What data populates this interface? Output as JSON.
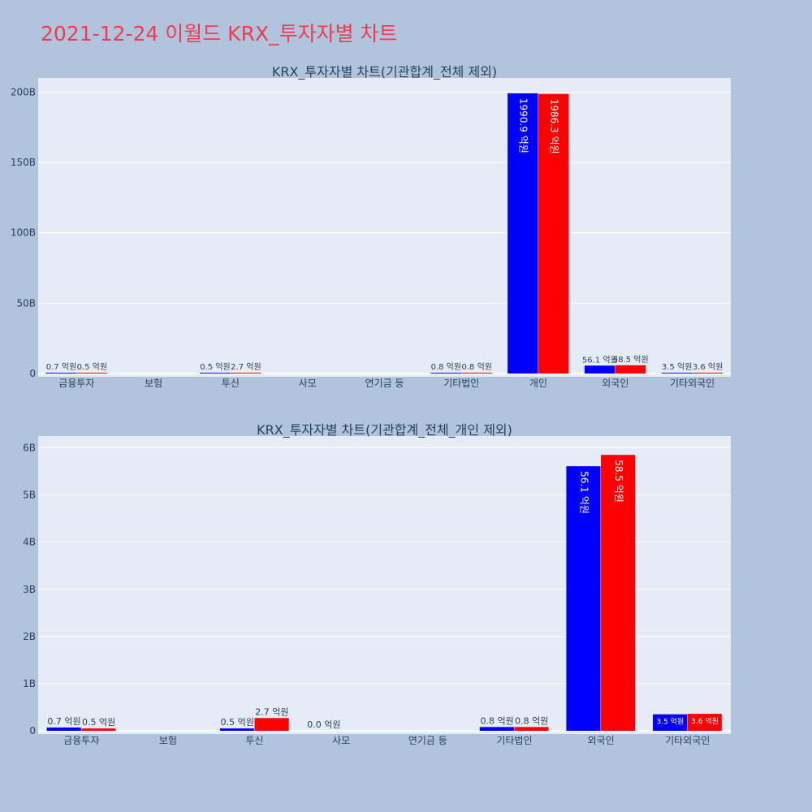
{
  "page_title": "2021-12-24 이월드 KRX_투자자별 차트",
  "colors": {
    "buy": "#0000ff",
    "sell": "#ff0000",
    "title": "#ef3b4f",
    "plot_bg": "#e5ecf6",
    "page_bg": "#b0c4de"
  },
  "chart_data": [
    {
      "type": "bar",
      "title": "KRX_투자자별 차트(기관합계_전체 제외)",
      "categories": [
        "금융투자",
        "보험",
        "투신",
        "사모",
        "연기금 등",
        "기타법인",
        "개인",
        "외국인",
        "기타외국인"
      ],
      "yticks": [
        "0",
        "50B",
        "100B",
        "150B",
        "200B"
      ],
      "ylim": [
        0,
        210
      ],
      "y_unit": "B",
      "series": [
        {
          "values": [
            0.07,
            0,
            0.05,
            0,
            0,
            0.08,
            199.09,
            5.61,
            0.35
          ],
          "labels": [
            "0.7 억원",
            "",
            "0.5 억원",
            "",
            "",
            "0.8 억원",
            "1990.9 억원",
            "56.1 억원",
            "3.5 억원"
          ]
        },
        {
          "values": [
            0.05,
            0,
            0.27,
            0,
            0,
            0.08,
            198.63,
            5.85,
            0.36
          ],
          "labels": [
            "0.5 억원",
            "",
            "2.7 억원",
            "",
            "",
            "0.8 억원",
            "1986.3 억원",
            "58.5 억원",
            "3.6 억원"
          ]
        }
      ]
    },
    {
      "type": "bar",
      "title": "KRX_투자자별 차트(기관합계_전체_개인 제외)",
      "categories": [
        "금융투자",
        "보험",
        "투신",
        "사모",
        "연기금 등",
        "기타법인",
        "외국인",
        "기타외국인"
      ],
      "yticks": [
        "0",
        "1B",
        "2B",
        "3B",
        "4B",
        "5B",
        "6B"
      ],
      "ylim": [
        0,
        6.25
      ],
      "y_unit": "B",
      "series": [
        {
          "values": [
            0.07,
            0,
            0.05,
            0,
            0,
            0.08,
            5.61,
            0.35
          ],
          "labels": [
            "0.7 억원",
            "",
            "0.5 억원",
            "0.0 억원",
            "",
            "0.8 억원",
            "56.1 억원",
            "3.5 억원"
          ]
        },
        {
          "values": [
            0.05,
            0,
            0.27,
            0,
            0,
            0.08,
            5.85,
            0.36
          ],
          "labels": [
            "0.5 억원",
            "",
            "2.7 억원",
            "",
            "",
            "0.8 억원",
            "58.5 억원",
            "3.6 억원"
          ]
        }
      ]
    }
  ]
}
